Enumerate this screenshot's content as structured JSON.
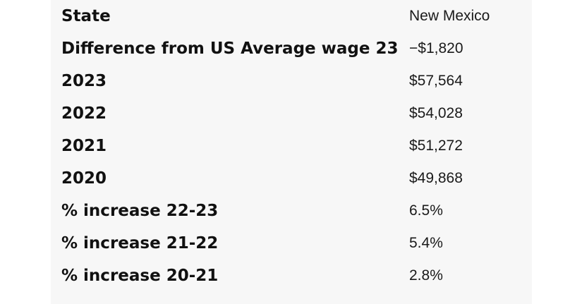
{
  "table": {
    "rows": [
      {
        "label": "State",
        "value": "New Mexico"
      },
      {
        "label": "Difference from US Average wage 23",
        "value": "−$1,820"
      },
      {
        "label": "2023",
        "value": "$57,564"
      },
      {
        "label": "2022",
        "value": "$54,028"
      },
      {
        "label": "2021",
        "value": "$51,272"
      },
      {
        "label": "2020",
        "value": "$49,868"
      },
      {
        "label": "% increase 22-23",
        "value": "6.5%"
      },
      {
        "label": "% increase 21-22",
        "value": "5.4%"
      },
      {
        "label": "% increase 20-21",
        "value": "2.8%"
      }
    ]
  }
}
